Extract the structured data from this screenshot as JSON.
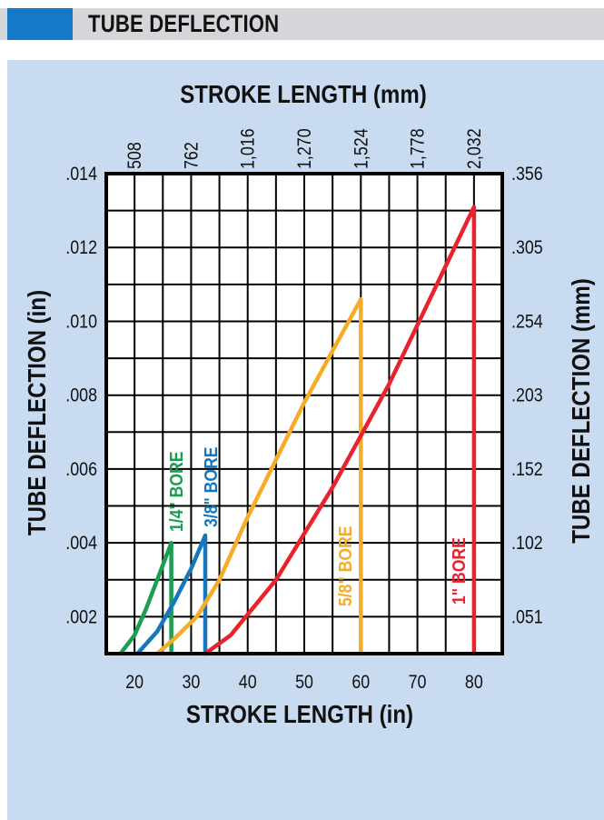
{
  "header": {
    "title": "TUBE DEFLECTION"
  },
  "colors": {
    "header_bar": "#d4d6d9",
    "header_accent": "#1679c7",
    "panel_background": "#c9dbf0",
    "plot_background": "#ffffff",
    "grid": "#000000"
  },
  "chart_data": {
    "type": "line",
    "xlabel": "STROKE LENGTH (in)",
    "x2label": "STROKE LENGTH (mm)",
    "ylabel": "TUBE DEFLECTION (in)",
    "y2label": "TUBE DEFLECTION (mm)",
    "xlim": [
      15,
      85
    ],
    "ylim": [
      0.001,
      0.014
    ],
    "x_ticks": [
      {
        "value": 20,
        "label": "20"
      },
      {
        "value": 30,
        "label": "30"
      },
      {
        "value": 40,
        "label": "40"
      },
      {
        "value": 50,
        "label": "50"
      },
      {
        "value": 60,
        "label": "60"
      },
      {
        "value": 70,
        "label": "70"
      },
      {
        "value": 80,
        "label": "80"
      }
    ],
    "x2_ticks": [
      {
        "value": 20,
        "label": "508"
      },
      {
        "value": 30,
        "label": "762"
      },
      {
        "value": 40,
        "label": "1,016"
      },
      {
        "value": 50,
        "label": "1,270"
      },
      {
        "value": 60,
        "label": "1,524"
      },
      {
        "value": 70,
        "label": "1,778"
      },
      {
        "value": 80,
        "label": "2,032"
      }
    ],
    "y_ticks": [
      {
        "value": 0.002,
        "label": ".002"
      },
      {
        "value": 0.004,
        "label": ".004"
      },
      {
        "value": 0.006,
        "label": ".006"
      },
      {
        "value": 0.008,
        "label": ".008"
      },
      {
        "value": 0.01,
        "label": ".010"
      },
      {
        "value": 0.012,
        "label": ".012"
      },
      {
        "value": 0.014,
        "label": ".014"
      }
    ],
    "y2_ticks": [
      {
        "value": 0.002,
        "label": ".051"
      },
      {
        "value": 0.004,
        "label": ".102"
      },
      {
        "value": 0.006,
        "label": ".152"
      },
      {
        "value": 0.008,
        "label": ".203"
      },
      {
        "value": 0.01,
        "label": ".254"
      },
      {
        "value": 0.012,
        "label": ".305"
      },
      {
        "value": 0.014,
        "label": ".356"
      }
    ],
    "grid": true,
    "grid_x_step": 5,
    "grid_y_step": 0.001,
    "series": [
      {
        "name": "1/4\" BORE",
        "color": "#1a9e4f",
        "x": [
          17.5,
          20,
          22,
          24,
          26.5,
          26.5
        ],
        "y": [
          0.001,
          0.0015,
          0.0022,
          0.003,
          0.004,
          0.001
        ]
      },
      {
        "name": "3/8\" BORE",
        "color": "#1677bd",
        "x": [
          20.5,
          24,
          27,
          30,
          32.5,
          32.5
        ],
        "y": [
          0.001,
          0.0016,
          0.0024,
          0.0033,
          0.0042,
          0.001
        ]
      },
      {
        "name": "5/8\" BORE",
        "color": "#f6ac27",
        "x": [
          24,
          27,
          31,
          35,
          40,
          50,
          60,
          60
        ],
        "y": [
          0.001,
          0.0014,
          0.002,
          0.003,
          0.0047,
          0.0078,
          0.0106,
          0.001
        ]
      },
      {
        "name": "1\" BORE",
        "color": "#e8232d",
        "x": [
          32.5,
          37,
          45,
          55,
          65,
          80,
          80
        ],
        "y": [
          0.001,
          0.0015,
          0.003,
          0.0055,
          0.0083,
          0.0131,
          0.001
        ]
      }
    ]
  }
}
